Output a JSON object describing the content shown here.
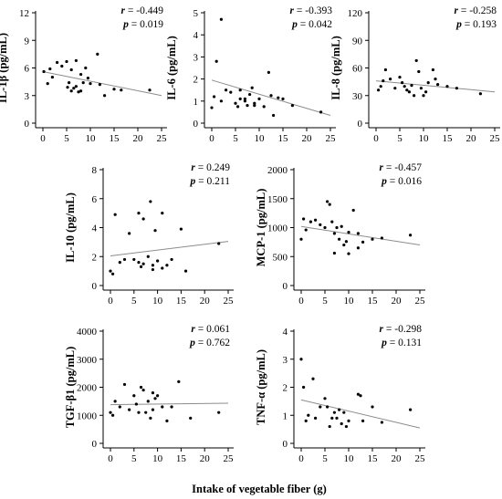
{
  "global_xlabel": "Intake of vegetable fiber (g)",
  "colors": {
    "points": "#000000",
    "trend": "#8c8c8c",
    "axis": "#000000"
  },
  "chart_data": [
    {
      "type": "scatter",
      "ylabel": "IL-1β (pg/mL)",
      "r_value": "-0.449",
      "p_value": "0.019",
      "xlim": [
        0,
        25
      ],
      "xticks": [
        "0",
        "5",
        "10",
        "15",
        "20",
        "25"
      ],
      "ylim": [
        0,
        12
      ],
      "yticks": [
        "0",
        "3",
        "6",
        "9",
        "12"
      ],
      "trend": [
        [
          0,
          5.6
        ],
        [
          25,
          3.0
        ]
      ],
      "points": [
        [
          0.2,
          5.6
        ],
        [
          1,
          4.3
        ],
        [
          1.5,
          5.9
        ],
        [
          2,
          5.0
        ],
        [
          3,
          6.6
        ],
        [
          4,
          6.2
        ],
        [
          5,
          6.7
        ],
        [
          5.2,
          3.9
        ],
        [
          5.5,
          4.4
        ],
        [
          6,
          3.5
        ],
        [
          6,
          5.8
        ],
        [
          6.5,
          3.8
        ],
        [
          7,
          6.8
        ],
        [
          7,
          4.0
        ],
        [
          7.5,
          3.4
        ],
        [
          8,
          5.3
        ],
        [
          8,
          3.5
        ],
        [
          8.5,
          4.4
        ],
        [
          9,
          6.0
        ],
        [
          9.5,
          4.9
        ],
        [
          10,
          4.3
        ],
        [
          11.5,
          7.5
        ],
        [
          12,
          4.2
        ],
        [
          13,
          3.0
        ],
        [
          15,
          3.7
        ],
        [
          16.5,
          3.6
        ],
        [
          22.5,
          3.6
        ]
      ]
    },
    {
      "type": "scatter",
      "ylabel": "IL-6 (pg/mL)",
      "r_value": "-0.393",
      "p_value": "0.042",
      "xlim": [
        0,
        25
      ],
      "xticks": [
        "0",
        "5",
        "10",
        "15",
        "20",
        "25"
      ],
      "ylim": [
        0,
        5
      ],
      "yticks": [
        "0",
        "1",
        "2",
        "3",
        "4",
        "5"
      ],
      "trend": [
        [
          0,
          1.95
        ],
        [
          25,
          0.35
        ]
      ],
      "points": [
        [
          0,
          0.7
        ],
        [
          0.5,
          1.2
        ],
        [
          1,
          2.8
        ],
        [
          2,
          4.7
        ],
        [
          2,
          1.0
        ],
        [
          3,
          1.5
        ],
        [
          4,
          1.4
        ],
        [
          5,
          0.9
        ],
        [
          5.5,
          0.75
        ],
        [
          6,
          1.5
        ],
        [
          6,
          1.1
        ],
        [
          7,
          1.1
        ],
        [
          7,
          1.0
        ],
        [
          7.5,
          0.8
        ],
        [
          8,
          1.3
        ],
        [
          8.5,
          1.6
        ],
        [
          9,
          0.9
        ],
        [
          9,
          0.8
        ],
        [
          10,
          1.1
        ],
        [
          11,
          0.75
        ],
        [
          12,
          2.3
        ],
        [
          12.5,
          1.25
        ],
        [
          13,
          0.35
        ],
        [
          14,
          1.15
        ],
        [
          15,
          1.1
        ],
        [
          17,
          0.8
        ],
        [
          23,
          0.5
        ]
      ]
    },
    {
      "type": "scatter",
      "ylabel": "IL-8 (pg/mL)",
      "r_value": "-0.258",
      "p_value": "0.193",
      "xlim": [
        0,
        25
      ],
      "xticks": [
        "0",
        "5",
        "10",
        "15",
        "20",
        "25"
      ],
      "ylim": [
        0,
        120
      ],
      "yticks": [
        "0",
        "30",
        "60",
        "90",
        "120"
      ],
      "trend": [
        [
          0,
          46
        ],
        [
          25,
          34
        ]
      ],
      "points": [
        [
          0.5,
          36
        ],
        [
          1,
          40
        ],
        [
          1.5,
          46
        ],
        [
          2,
          58
        ],
        [
          3,
          48
        ],
        [
          4,
          38
        ],
        [
          5,
          50
        ],
        [
          5.5,
          44
        ],
        [
          6,
          40
        ],
        [
          6.5,
          36
        ],
        [
          7,
          34
        ],
        [
          7.5,
          41
        ],
        [
          8,
          30
        ],
        [
          8.5,
          68
        ],
        [
          9,
          56
        ],
        [
          9.5,
          38
        ],
        [
          10,
          30
        ],
        [
          10.5,
          34
        ],
        [
          11,
          44
        ],
        [
          12,
          58
        ],
        [
          12.5,
          48
        ],
        [
          13,
          42
        ],
        [
          15,
          40
        ],
        [
          17,
          38
        ],
        [
          22,
          32
        ]
      ]
    },
    {
      "type": "scatter",
      "ylabel": "IL-10 (pg/mL)",
      "r_value": "0.249",
      "p_value": "0.211",
      "xlim": [
        0,
        25
      ],
      "xticks": [
        "0",
        "5",
        "10",
        "15",
        "20",
        "25"
      ],
      "ylim": [
        0,
        8
      ],
      "yticks": [
        "0",
        "2",
        "4",
        "6",
        "8"
      ],
      "trend": [
        [
          0,
          2.05
        ],
        [
          25,
          3.05
        ]
      ],
      "points": [
        [
          0,
          1.0
        ],
        [
          0.5,
          0.8
        ],
        [
          1,
          4.9
        ],
        [
          2,
          1.6
        ],
        [
          3,
          1.8
        ],
        [
          4,
          3.6
        ],
        [
          5,
          1.8
        ],
        [
          6,
          5.0
        ],
        [
          6,
          1.6
        ],
        [
          6.5,
          1.3
        ],
        [
          7,
          4.6
        ],
        [
          7,
          1.5
        ],
        [
          8,
          2.0
        ],
        [
          8.5,
          5.8
        ],
        [
          9,
          1.4
        ],
        [
          9,
          1.1
        ],
        [
          9.5,
          3.8
        ],
        [
          10,
          1.7
        ],
        [
          11,
          1.2
        ],
        [
          11,
          5.0
        ],
        [
          12,
          1.4
        ],
        [
          13,
          1.8
        ],
        [
          15,
          3.9
        ],
        [
          16,
          1.0
        ],
        [
          23,
          2.9
        ]
      ]
    },
    {
      "type": "scatter",
      "ylabel": "MCP-1 (pg/mL)",
      "r_value": "-0.457",
      "p_value": "0.016",
      "xlim": [
        0,
        25
      ],
      "xticks": [
        "0",
        "5",
        "10",
        "15",
        "20",
        "25"
      ],
      "ylim": [
        0,
        2000
      ],
      "yticks": [
        "0",
        "500",
        "1000",
        "1500",
        "2000"
      ],
      "trend": [
        [
          0,
          1020
        ],
        [
          25,
          700
        ]
      ],
      "points": [
        [
          0,
          800
        ],
        [
          0.5,
          1150
        ],
        [
          1,
          960
        ],
        [
          2,
          1100
        ],
        [
          3,
          1130
        ],
        [
          4,
          1050
        ],
        [
          5,
          1000
        ],
        [
          5.5,
          1450
        ],
        [
          6,
          1400
        ],
        [
          6.5,
          1100
        ],
        [
          7,
          900
        ],
        [
          7,
          560
        ],
        [
          7.5,
          1000
        ],
        [
          8,
          800
        ],
        [
          8.5,
          1020
        ],
        [
          9,
          700
        ],
        [
          9.5,
          760
        ],
        [
          10,
          920
        ],
        [
          10,
          550
        ],
        [
          11,
          1300
        ],
        [
          12,
          650
        ],
        [
          12,
          900
        ],
        [
          13,
          750
        ],
        [
          15,
          800
        ],
        [
          17,
          820
        ],
        [
          23,
          870
        ]
      ]
    },
    {
      "type": "scatter",
      "ylabel": "TGF-β1 (pg/mL)",
      "r_value": "0.061",
      "p_value": "0.762",
      "xlim": [
        0,
        25
      ],
      "xticks": [
        "0",
        "5",
        "10",
        "15",
        "20",
        "25"
      ],
      "ylim": [
        0,
        4000
      ],
      "yticks": [
        "0",
        "1000",
        "2000",
        "3000",
        "4000"
      ],
      "trend": [
        [
          0,
          1380
        ],
        [
          25,
          1430
        ]
      ],
      "points": [
        [
          0,
          1100
        ],
        [
          0.5,
          1000
        ],
        [
          1,
          1500
        ],
        [
          2,
          1300
        ],
        [
          3,
          2100
        ],
        [
          4,
          1200
        ],
        [
          5,
          1700
        ],
        [
          5.5,
          1400
        ],
        [
          6,
          1100
        ],
        [
          6.5,
          2000
        ],
        [
          7,
          1900
        ],
        [
          7.5,
          1100
        ],
        [
          8,
          1500
        ],
        [
          8.5,
          900
        ],
        [
          9,
          1800
        ],
        [
          9,
          1200
        ],
        [
          9.5,
          1600
        ],
        [
          10,
          1700
        ],
        [
          11,
          1300
        ],
        [
          12,
          800
        ],
        [
          13,
          1300
        ],
        [
          14.5,
          2200
        ],
        [
          17,
          900
        ],
        [
          23,
          1100
        ]
      ]
    },
    {
      "type": "scatter",
      "ylabel": "TNF-α (pg/mL)",
      "r_value": "-0.298",
      "p_value": "0.131",
      "xlim": [
        0,
        25
      ],
      "xticks": [
        "0",
        "5",
        "10",
        "15",
        "20",
        "25"
      ],
      "ylim": [
        0,
        4
      ],
      "yticks": [
        "0",
        "1",
        "2",
        "3",
        "4"
      ],
      "trend": [
        [
          0,
          1.55
        ],
        [
          25,
          0.55
        ]
      ],
      "points": [
        [
          0,
          3.0
        ],
        [
          0.5,
          2.0
        ],
        [
          1,
          0.8
        ],
        [
          1.5,
          1.0
        ],
        [
          2.5,
          2.3
        ],
        [
          3,
          0.9
        ],
        [
          4,
          1.3
        ],
        [
          5,
          1.6
        ],
        [
          5.5,
          1.3
        ],
        [
          6,
          0.6
        ],
        [
          6.5,
          0.9
        ],
        [
          7,
          1.1
        ],
        [
          7.5,
          0.9
        ],
        [
          8,
          1.2
        ],
        [
          8.5,
          0.7
        ],
        [
          9,
          1.1
        ],
        [
          9.5,
          0.6
        ],
        [
          10,
          0.8
        ],
        [
          12,
          1.75
        ],
        [
          12.5,
          1.7
        ],
        [
          13,
          0.8
        ],
        [
          15,
          1.3
        ],
        [
          17,
          0.75
        ],
        [
          23,
          1.2
        ]
      ]
    }
  ]
}
